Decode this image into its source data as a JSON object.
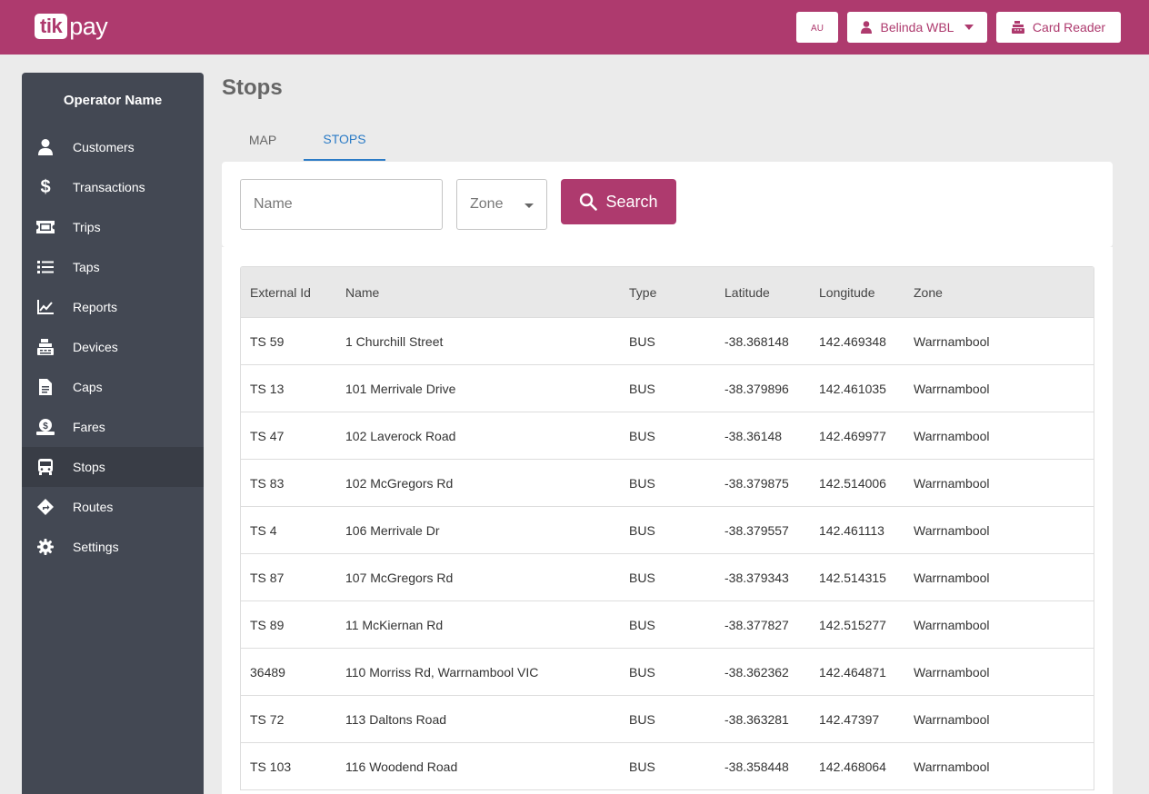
{
  "brand": {
    "logo_left": "tik",
    "logo_right": "pay",
    "accent_color": "#ae3a6e"
  },
  "header": {
    "region": "AU",
    "user": "Belinda WBL",
    "card_reader": "Card Reader"
  },
  "sidebar": {
    "title": "Operator Name",
    "items": [
      {
        "label": "Customers",
        "icon": "person-icon"
      },
      {
        "label": "Transactions",
        "icon": "dollar-icon"
      },
      {
        "label": "Trips",
        "icon": "ticket-icon"
      },
      {
        "label": "Taps",
        "icon": "list-icon"
      },
      {
        "label": "Reports",
        "icon": "chart-line-icon"
      },
      {
        "label": "Devices",
        "icon": "cash-register-icon"
      },
      {
        "label": "Caps",
        "icon": "document-icon"
      },
      {
        "label": "Fares",
        "icon": "money-hand-icon"
      },
      {
        "label": "Stops",
        "icon": "bus-icon",
        "active": true
      },
      {
        "label": "Routes",
        "icon": "directions-icon"
      },
      {
        "label": "Settings",
        "icon": "gear-icon"
      }
    ]
  },
  "page": {
    "title": "Stops"
  },
  "tabs": {
    "map": "MAP",
    "stops": "STOPS",
    "active": "STOPS"
  },
  "search": {
    "name_placeholder": "Name",
    "zone_placeholder": "Zone",
    "button": "Search"
  },
  "table": {
    "headers": [
      "External Id",
      "Name",
      "Type",
      "Latitude",
      "Longitude",
      "Zone"
    ],
    "rows": [
      [
        "TS 59",
        "1 Churchill Street",
        "BUS",
        "-38.368148",
        "142.469348",
        "Warrnambool"
      ],
      [
        "TS 13",
        "101 Merrivale Drive",
        "BUS",
        "-38.379896",
        "142.461035",
        "Warrnambool"
      ],
      [
        "TS 47",
        "102 Laverock Road",
        "BUS",
        "-38.36148",
        "142.469977",
        "Warrnambool"
      ],
      [
        "TS 83",
        "102 McGregors Rd",
        "BUS",
        "-38.379875",
        "142.514006",
        "Warrnambool"
      ],
      [
        "TS 4",
        "106 Merrivale Dr",
        "BUS",
        "-38.379557",
        "142.461113",
        "Warrnambool"
      ],
      [
        "TS 87",
        "107 McGregors Rd",
        "BUS",
        "-38.379343",
        "142.514315",
        "Warrnambool"
      ],
      [
        "TS 89",
        "11 McKiernan Rd",
        "BUS",
        "-38.377827",
        "142.515277",
        "Warrnambool"
      ],
      [
        "36489",
        "110 Morriss Rd, Warrnambool VIC",
        "BUS",
        "-38.362362",
        "142.464871",
        "Warrnambool"
      ],
      [
        "TS 72",
        "113 Daltons Road",
        "BUS",
        "-38.363281",
        "142.47397",
        "Warrnambool"
      ],
      [
        "TS 103",
        "116 Woodend Road",
        "BUS",
        "-38.358448",
        "142.468064",
        "Warrnambool"
      ]
    ]
  }
}
